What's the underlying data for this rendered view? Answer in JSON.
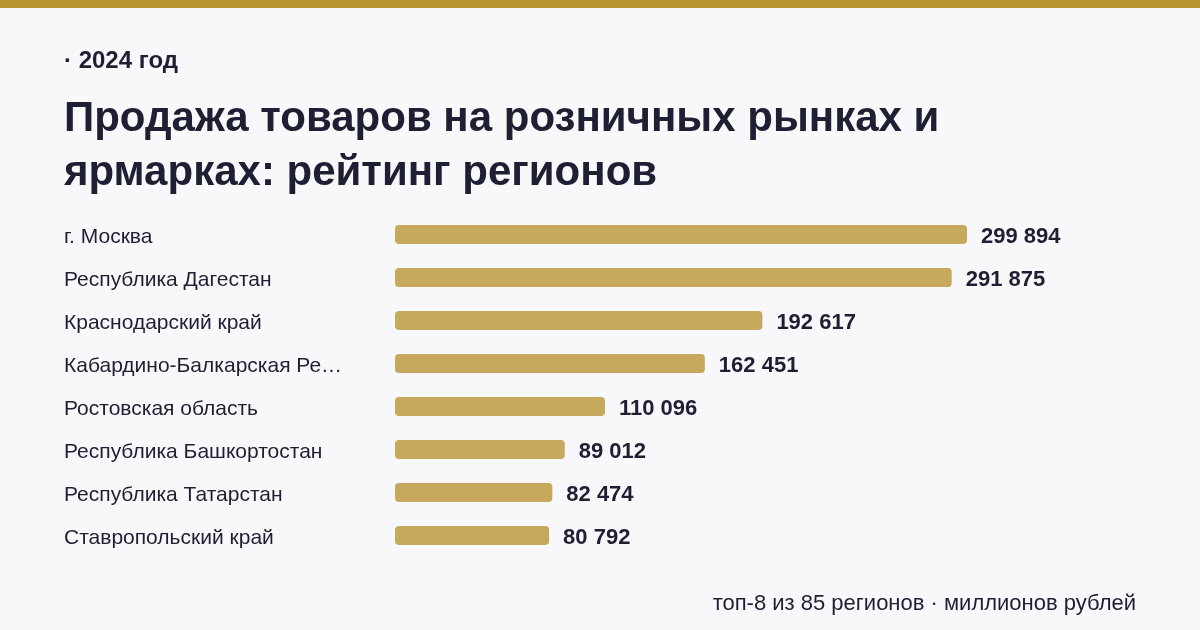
{
  "chart_data": {
    "type": "bar",
    "orientation": "horizontal",
    "subtitle": "· 2024 год",
    "title": "Продажа товаров на розничных рынках и ярмарках: рейтинг регионов",
    "categories": [
      "г. Москва",
      "Республика Дагестан",
      "Краснодарский край",
      "Кабардино-Балкарская Ре…",
      "Ростовская область",
      "Республика Башкортостан",
      "Республика Татарстан",
      "Ставропольский край"
    ],
    "values": [
      299894,
      291875,
      192617,
      162451,
      110096,
      89012,
      82474,
      80792
    ],
    "value_labels": [
      "299 894",
      "291 875",
      "192 617",
      "162 451",
      "110 096",
      "89 012",
      "82 474",
      "80 792"
    ],
    "color": "#c6a95c",
    "annotations": [
      "топ-8 из 85 регионов · миллионов рублей"
    ]
  }
}
